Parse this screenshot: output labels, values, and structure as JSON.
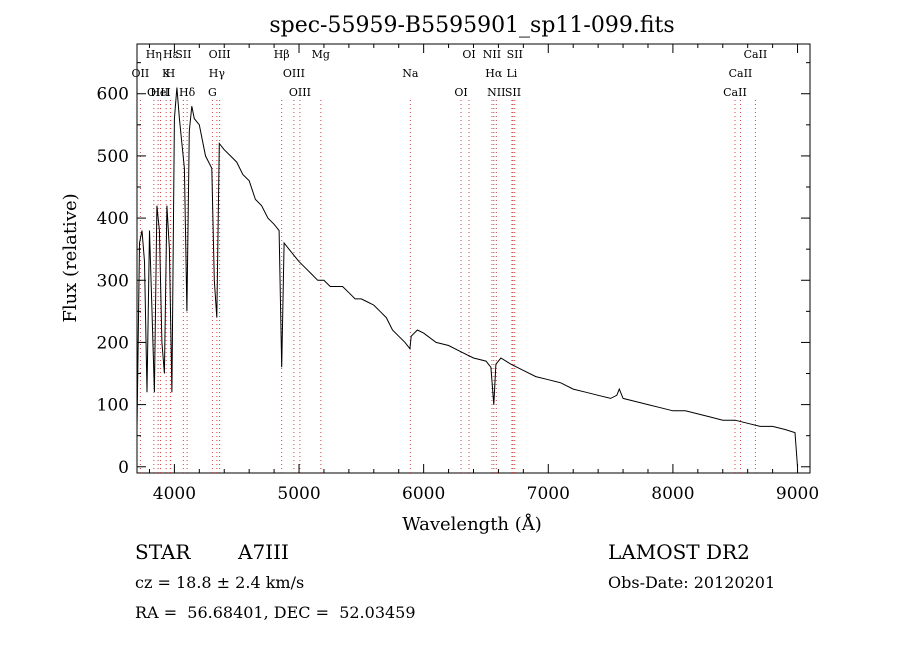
{
  "chart_data": {
    "type": "line",
    "title": "spec-55959-B5595901_sp11-099.fits",
    "xlabel": "Wavelength (Å)",
    "ylabel": "Flux (relative)",
    "xlim": [
      3700,
      9100
    ],
    "ylim": [
      -10,
      680
    ],
    "xticks": [
      4000,
      5000,
      6000,
      7000,
      8000,
      9000
    ],
    "yticks": [
      0,
      100,
      200,
      300,
      400,
      500,
      600
    ],
    "grid": false,
    "series": [
      {
        "x": [
          3700,
          3720,
          3740,
          3760,
          3780,
          3800,
          3820,
          3840,
          3860,
          3880,
          3900,
          3920,
          3940,
          3960,
          3980,
          4000,
          4020,
          4040,
          4060,
          4080,
          4100,
          4120,
          4140,
          4160,
          4200,
          4250,
          4300,
          4320,
          4340,
          4360,
          4400,
          4450,
          4500,
          4550,
          4600,
          4650,
          4700,
          4750,
          4800,
          4840,
          4861,
          4880,
          4920,
          4960,
          5000,
          5050,
          5100,
          5150,
          5200,
          5250,
          5300,
          5350,
          5400,
          5450,
          5500,
          5550,
          5600,
          5650,
          5700,
          5750,
          5800,
          5850,
          5890,
          5900,
          5950,
          6000,
          6100,
          6200,
          6300,
          6400,
          6500,
          6540,
          6563,
          6580,
          6620,
          6700,
          6800,
          6900,
          7000,
          7100,
          7200,
          7300,
          7400,
          7500,
          7550,
          7570,
          7600,
          7700,
          7800,
          7900,
          8000,
          8100,
          8200,
          8300,
          8400,
          8500,
          8600,
          8700,
          8800,
          8900,
          8980,
          9000
        ],
        "values": [
          60,
          360,
          380,
          330,
          120,
          380,
          250,
          120,
          420,
          380,
          200,
          150,
          420,
          350,
          120,
          560,
          610,
          560,
          520,
          480,
          250,
          540,
          580,
          560,
          550,
          500,
          480,
          300,
          240,
          520,
          510,
          500,
          490,
          470,
          460,
          430,
          420,
          400,
          390,
          380,
          160,
          360,
          350,
          340,
          330,
          320,
          310,
          300,
          300,
          290,
          290,
          290,
          280,
          270,
          270,
          265,
          260,
          250,
          240,
          220,
          210,
          200,
          190,
          210,
          220,
          215,
          200,
          195,
          185,
          175,
          170,
          160,
          100,
          165,
          175,
          165,
          155,
          145,
          140,
          135,
          125,
          120,
          115,
          110,
          115,
          125,
          110,
          105,
          100,
          95,
          90,
          90,
          85,
          80,
          75,
          75,
          70,
          65,
          65,
          60,
          55,
          0
        ]
      }
    ],
    "lines": [
      {
        "label": "Hε",
        "x": 3970
      },
      {
        "label": "K",
        "x": 3934
      },
      {
        "label": "Hδ",
        "x": 4102
      },
      {
        "label": "OIII",
        "x": 4363
      },
      {
        "label": "OII",
        "x": 3727
      },
      {
        "label": "HeI",
        "x": 3889
      },
      {
        "label": "SII",
        "x": 4072
      },
      {
        "label": "Hγ",
        "x": 4341
      },
      {
        "label": "OIII",
        "x": 3869
      },
      {
        "label": "Hη",
        "x": 3835
      },
      {
        "label": "H",
        "x": 3968
      },
      {
        "label": "G",
        "x": 4305
      },
      {
        "label": "Hβ",
        "x": 4861
      },
      {
        "label": "OIII",
        "x": 4959
      },
      {
        "label": "OIII",
        "x": 5007
      },
      {
        "label": "Mg",
        "x": 5175
      },
      {
        "label": "Na",
        "x": 5893
      },
      {
        "label": "OI",
        "x": 6300
      },
      {
        "label": "OI",
        "x": 6364
      },
      {
        "label": "Hα",
        "x": 6563
      },
      {
        "label": "SII",
        "x": 6717
      },
      {
        "label": "NII",
        "x": 6548
      },
      {
        "label": "Li",
        "x": 6708
      },
      {
        "label": "NII",
        "x": 6583
      },
      {
        "label": "SII",
        "x": 6731
      },
      {
        "label": "CaII",
        "x": 8542
      },
      {
        "label": "CaII",
        "x": 8498
      },
      {
        "label": "CaII",
        "x": 8662
      }
    ]
  },
  "info": {
    "class_label": "STAR",
    "subclass": "A7III",
    "survey": "LAMOST DR2",
    "redshift": "cz = 18.8 ± 2.4 km/s",
    "obs_date": "Obs-Date: 20120201",
    "coords": "RA =  56.68401, DEC =  52.03459"
  }
}
